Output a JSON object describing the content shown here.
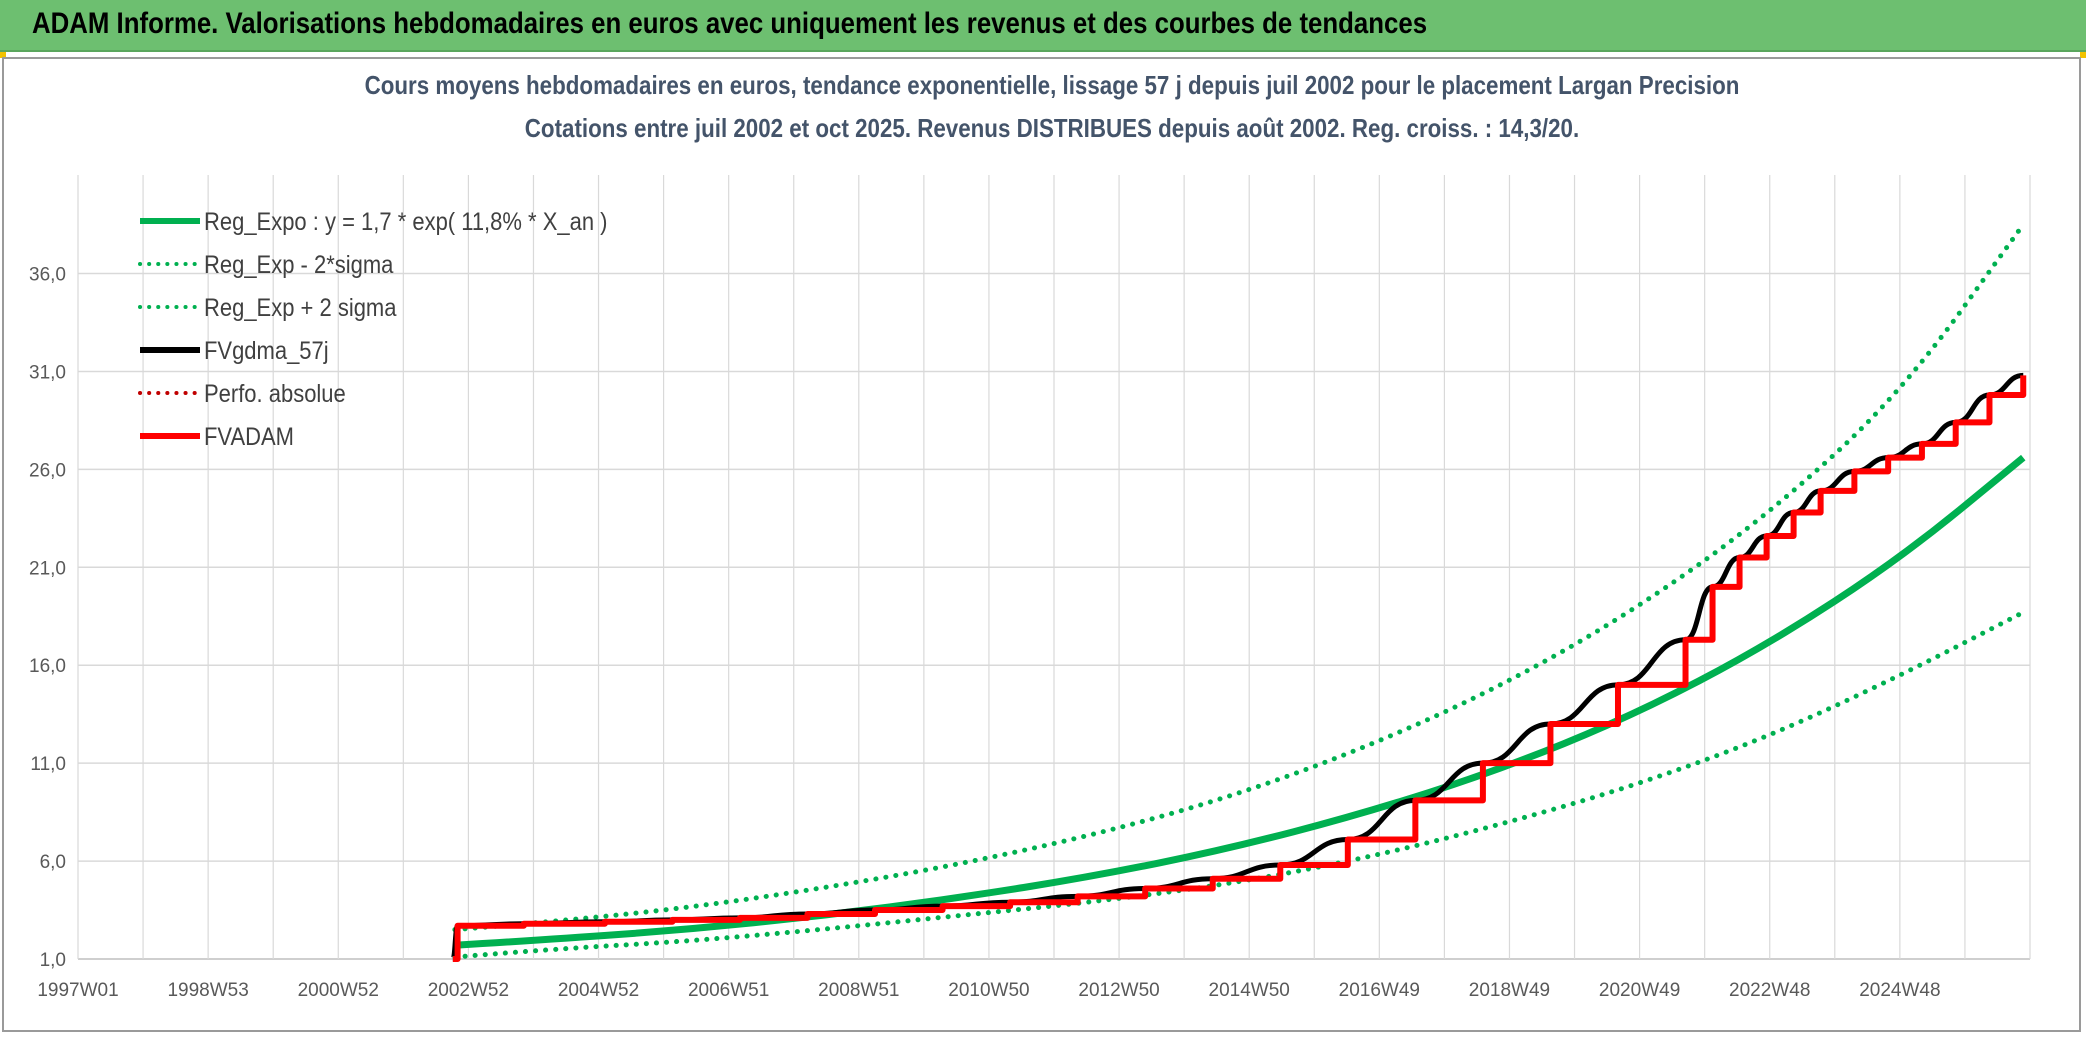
{
  "header": {
    "title": "ADAM Informe. Valorisations hebdomadaires en euros avec uniquement les revenus et des courbes de tendances"
  },
  "colors": {
    "header_bg": "#6dbf70",
    "trend": "#00b050",
    "smoothed": "#000000",
    "fvadam": "#ff0000",
    "perf": "#c00000"
  },
  "chart_data": {
    "type": "line",
    "title": "Cours moyens hebdomadaires en euros, tendance exponentielle, lissage 57 j depuis juil 2002 pour le placement Largan Precision",
    "subtitle": "Cotations entre juil 2002 et oct 2025. Revenus DISTRIBUES depuis août 2002. Reg. croiss. : 14,3/20.",
    "x_ticks": [
      "1997W01",
      "1998W53",
      "2000W52",
      "2002W52",
      "2004W52",
      "2006W51",
      "2008W51",
      "2010W50",
      "2012W50",
      "2014W50",
      "2016W49",
      "2018W49",
      "2020W49",
      "2022W48",
      "2024W48"
    ],
    "x_range": [
      1997.0,
      2025.9
    ],
    "y_ticks": [
      "1,0",
      "6,0",
      "11,0",
      "16,0",
      "21,0",
      "26,0",
      "31,0",
      "36,0"
    ],
    "ylim": [
      1,
      39.5
    ],
    "grid": true,
    "legend_position": "top-left",
    "series": [
      {
        "name": "Reg_Expo : y = 1,7 * exp( 11,8% *  X_an )",
        "style": "solid-thick",
        "color": "#00b050",
        "x": [
          2002.58,
          2004,
          2006,
          2008,
          2010,
          2012,
          2014,
          2016,
          2018,
          2020,
          2022,
          2024,
          2025.8
        ],
        "y": [
          1.7,
          2.0,
          2.5,
          3.2,
          4.1,
          5.2,
          6.6,
          8.4,
          10.6,
          13.4,
          17.0,
          21.5,
          26.6
        ]
      },
      {
        "name": "Reg_Exp - 2*sigma",
        "style": "dotted",
        "color": "#00b050",
        "x": [
          2002.58,
          2004,
          2006,
          2008,
          2010,
          2012,
          2014,
          2016,
          2018,
          2020,
          2022,
          2024,
          2025.8
        ],
        "y": [
          1.1,
          1.5,
          1.9,
          2.5,
          3.2,
          3.9,
          4.8,
          6.1,
          7.8,
          9.8,
          12.3,
          15.5,
          18.7
        ]
      },
      {
        "name": "Reg_Exp + 2 sigma",
        "style": "dotted",
        "color": "#00b050",
        "x": [
          2002.58,
          2004,
          2006,
          2008,
          2010,
          2012,
          2014,
          2016,
          2018,
          2020,
          2022,
          2024,
          2025.8
        ],
        "y": [
          2.5,
          2.9,
          3.6,
          4.6,
          5.8,
          7.3,
          9.2,
          11.7,
          14.8,
          18.7,
          23.6,
          29.9,
          38.5
        ]
      },
      {
        "name": "FVgdma_57j",
        "style": "solid",
        "color": "#000000",
        "x": [
          2002.55,
          2002.62,
          2003.6,
          2004.8,
          2005.8,
          2006.8,
          2007.8,
          2008.8,
          2009.8,
          2010.8,
          2011.8,
          2012.8,
          2013.8,
          2014.8,
          2015.8,
          2016.8,
          2017.8,
          2018.8,
          2019.8,
          2020.8,
          2021.2,
          2021.6,
          2022.0,
          2022.4,
          2022.8,
          2023.3,
          2023.8,
          2024.3,
          2024.8,
          2025.3,
          2025.8
        ],
        "y": [
          1.0,
          2.7,
          2.8,
          2.9,
          3.0,
          3.1,
          3.3,
          3.5,
          3.7,
          3.9,
          4.2,
          4.6,
          5.1,
          5.8,
          7.1,
          9.1,
          11.0,
          13.0,
          15.0,
          17.3,
          20.0,
          21.5,
          22.6,
          23.8,
          24.9,
          25.9,
          26.6,
          27.3,
          28.4,
          29.8,
          30.8
        ]
      },
      {
        "name": "Perfo. absolue",
        "style": "dotted",
        "color": "#c00000",
        "x": [],
        "y": []
      },
      {
        "name": "FVADAM",
        "style": "step-thick",
        "color": "#ff0000",
        "x": [
          2002.55,
          2002.62,
          2003.6,
          2004.8,
          2005.8,
          2006.8,
          2007.8,
          2008.8,
          2009.8,
          2010.8,
          2011.8,
          2012.8,
          2013.8,
          2014.8,
          2015.8,
          2016.8,
          2017.8,
          2018.8,
          2019.8,
          2020.8,
          2021.2,
          2021.6,
          2022.0,
          2022.4,
          2022.8,
          2023.3,
          2023.8,
          2024.3,
          2024.8,
          2025.3,
          2025.8
        ],
        "y": [
          1.0,
          2.7,
          2.8,
          2.9,
          3.0,
          3.1,
          3.3,
          3.5,
          3.7,
          3.9,
          4.2,
          4.6,
          5.1,
          5.8,
          7.1,
          9.1,
          11.0,
          13.0,
          15.0,
          17.3,
          20.0,
          21.5,
          22.6,
          23.8,
          24.9,
          25.9,
          26.6,
          27.3,
          28.4,
          29.8,
          30.8
        ]
      }
    ]
  }
}
